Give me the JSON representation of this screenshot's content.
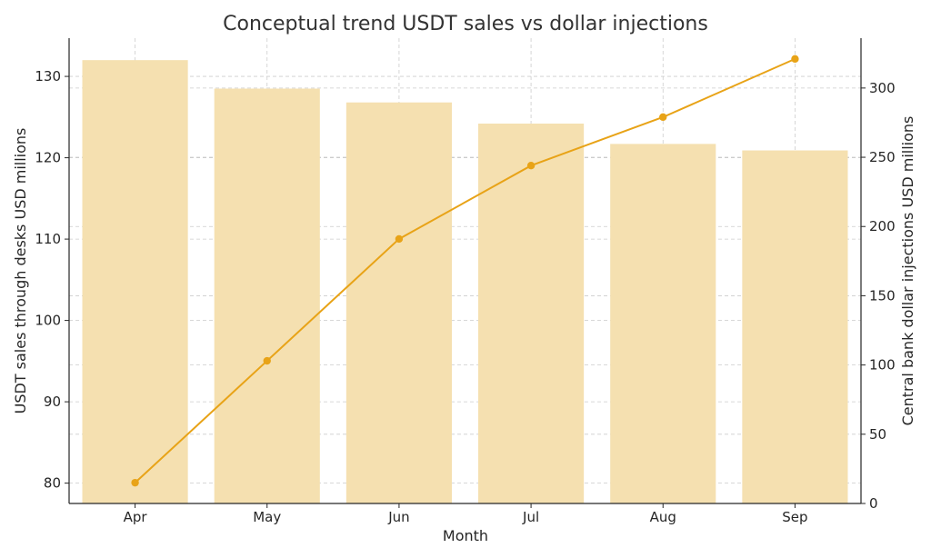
{
  "chart_data": {
    "type": "bar+line",
    "title": "Conceptual trend  USDT sales vs dollar injections",
    "xlabel": "Month",
    "ylabel_left": "USDT sales through desks  USD millions",
    "ylabel_right": "Central bank dollar injections  USD millions",
    "categories": [
      "Apr",
      "May",
      "Jun",
      "Jul",
      "Aug",
      "Sep"
    ],
    "series": [
      {
        "kind": "bar",
        "axis": "left",
        "values": [
          132,
          128.5,
          126.8,
          124.2,
          121.7,
          120.9
        ]
      },
      {
        "kind": "line",
        "axis": "right",
        "values": [
          15,
          103,
          191,
          244,
          279,
          321
        ]
      }
    ],
    "ylim_left": [
      77.5,
      134.7
    ],
    "ylim_right": [
      0,
      336
    ],
    "yticks_left": [
      80,
      90,
      100,
      110,
      120,
      130
    ],
    "yticks_right": [
      0,
      50,
      100,
      150,
      200,
      250,
      300
    ],
    "grid": true,
    "colors": {
      "bar": "#f5e0b0",
      "line": "#e8a317",
      "grid": "#cccccc",
      "axis": "#262626"
    }
  }
}
